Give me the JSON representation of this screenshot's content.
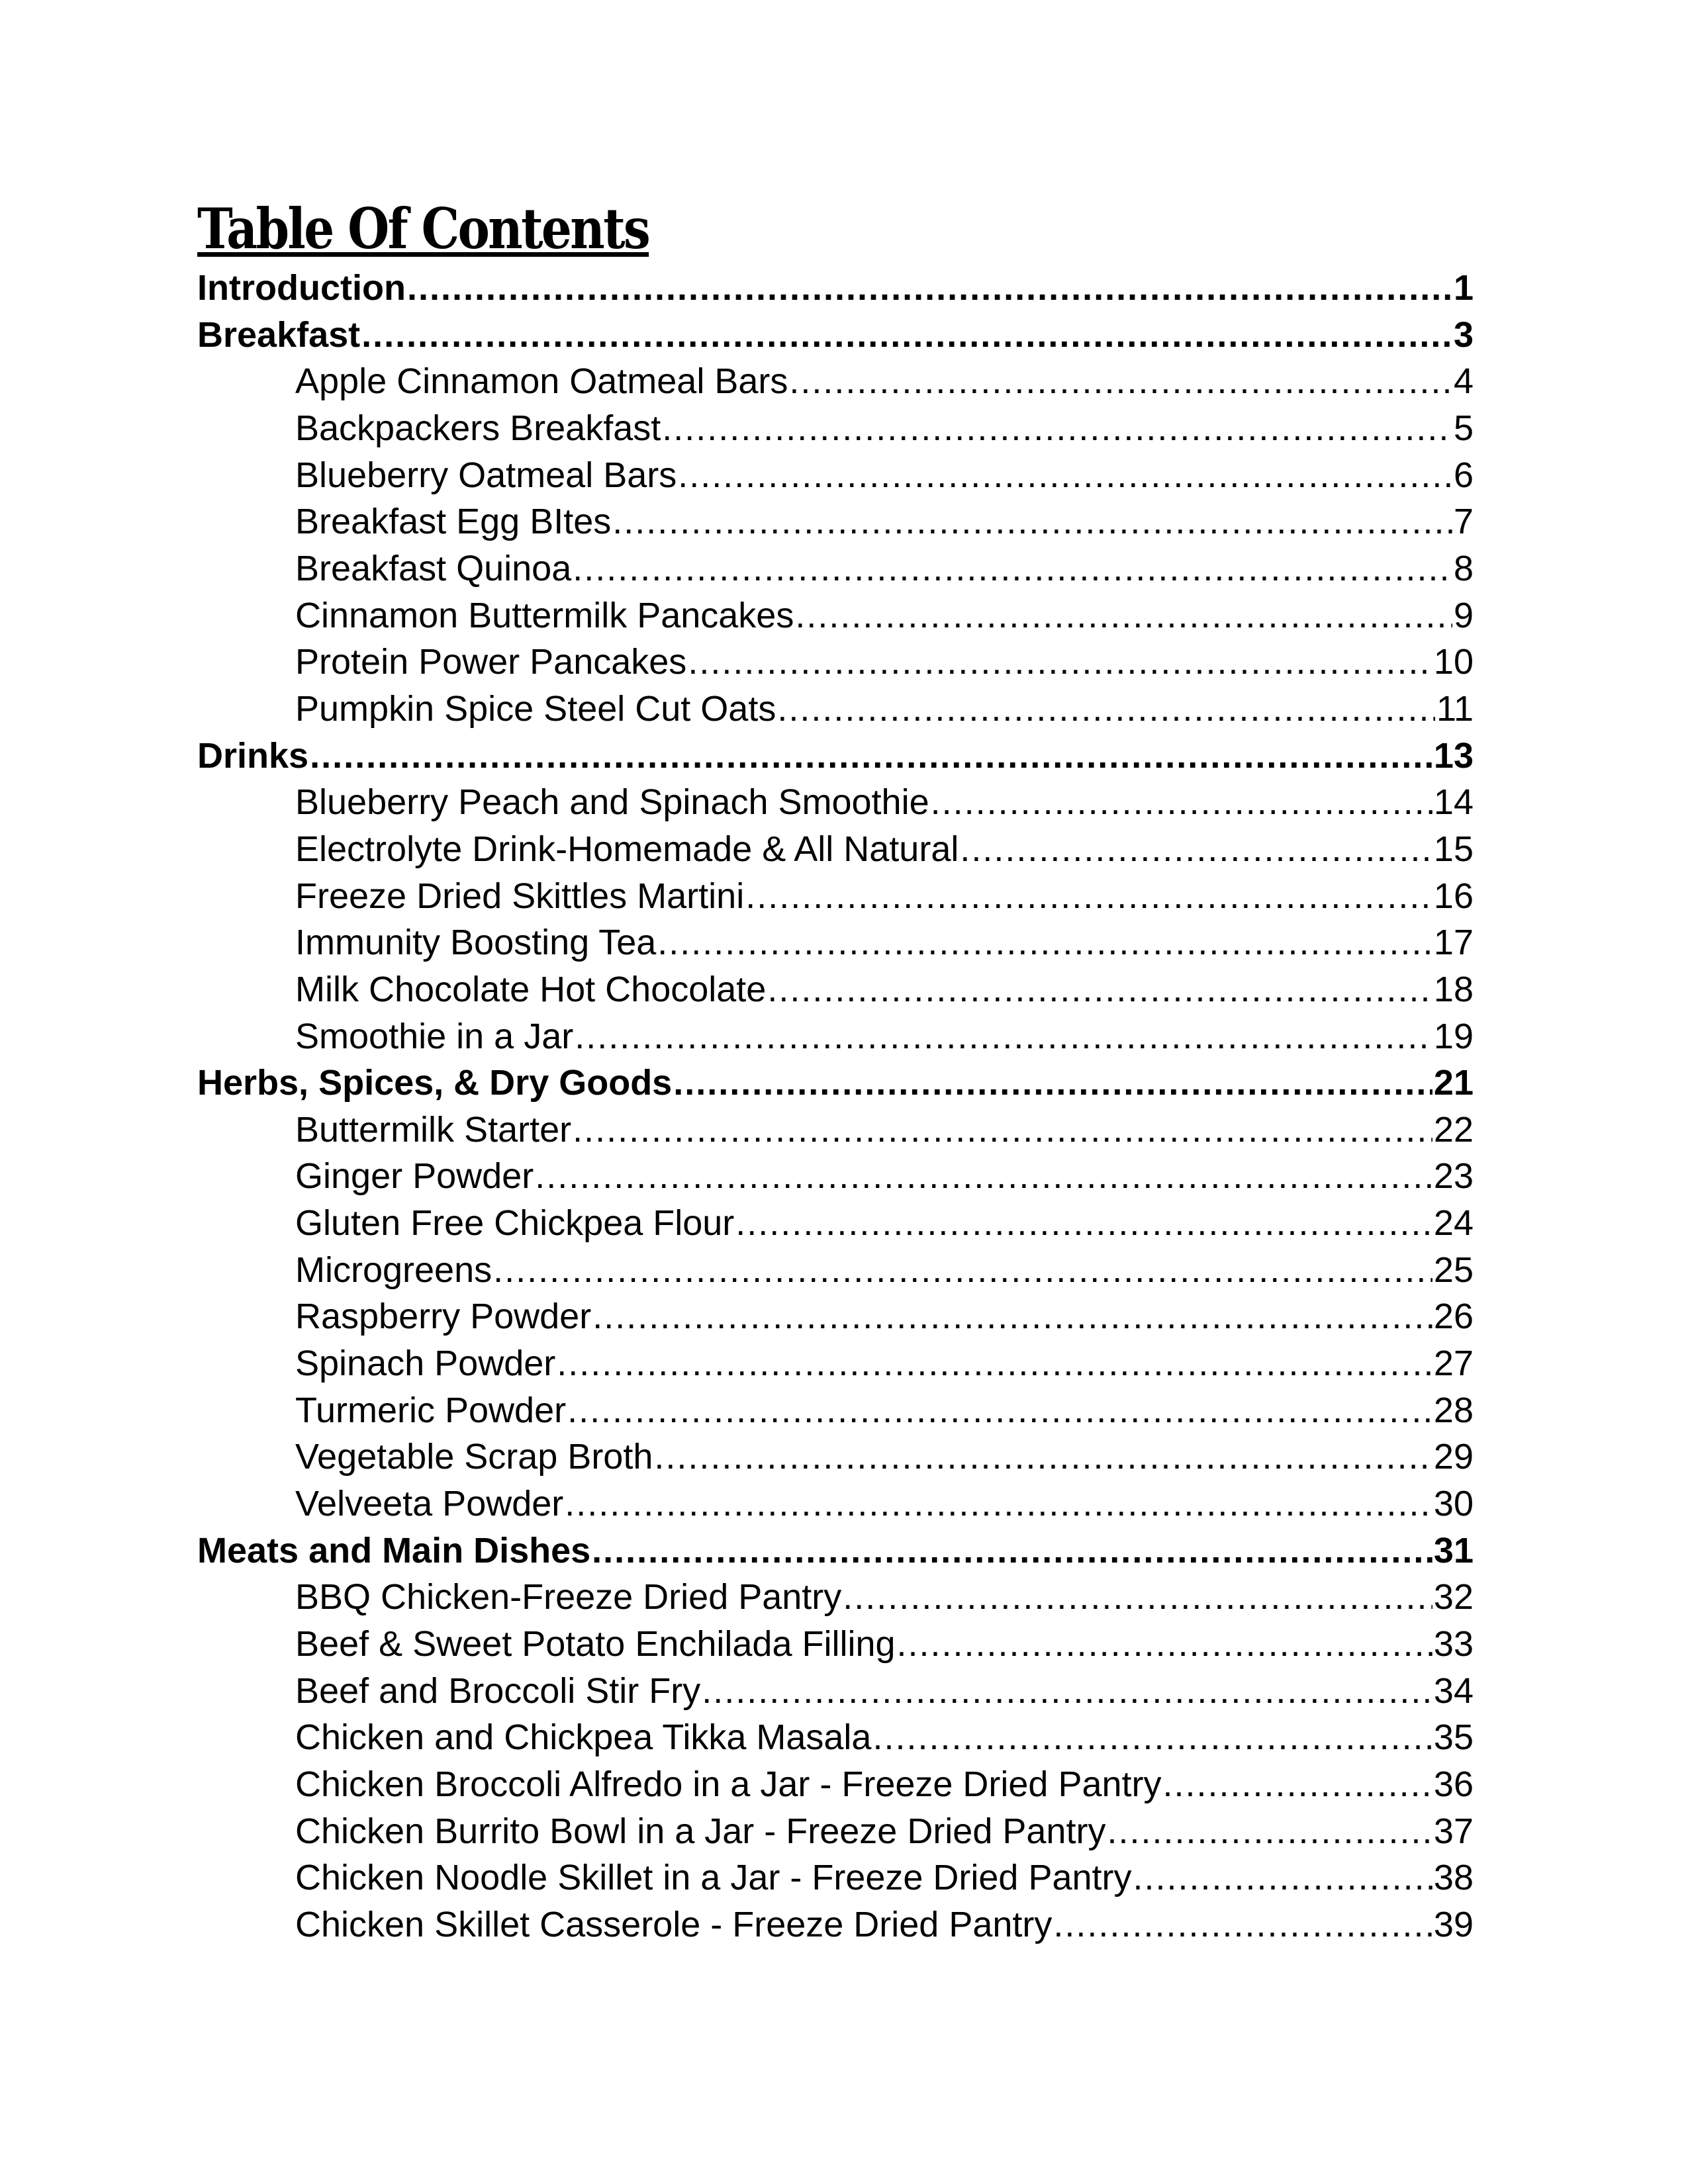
{
  "title": "Table Of Contents",
  "entries": [
    {
      "label": "Introduction",
      "page": "1",
      "level": 1
    },
    {
      "label": "Breakfast",
      "page": "3",
      "level": 1
    },
    {
      "label": "Apple Cinnamon Oatmeal Bars",
      "page": "4",
      "level": 2
    },
    {
      "label": "Backpackers Breakfast",
      "page": "5",
      "level": 2
    },
    {
      "label": "Blueberry Oatmeal Bars",
      "page": "6",
      "level": 2
    },
    {
      "label": "Breakfast Egg BItes",
      "page": "7",
      "level": 2
    },
    {
      "label": "Breakfast Quinoa",
      "page": "8",
      "level": 2
    },
    {
      "label": "Cinnamon Buttermilk Pancakes",
      "page": "9",
      "level": 2
    },
    {
      "label": "Protein Power Pancakes",
      "page": "10",
      "level": 2
    },
    {
      "label": "Pumpkin Spice Steel Cut Oats",
      "page": "11",
      "level": 2
    },
    {
      "label": "Drinks",
      "page": "13",
      "level": 1
    },
    {
      "label": "Blueberry Peach  and Spinach Smoothie",
      "page": "14",
      "level": 2
    },
    {
      "label": "Electrolyte Drink-Homemade & All Natural",
      "page": "15",
      "level": 2
    },
    {
      "label": "Freeze Dried Skittles Martini",
      "page": "16",
      "level": 2
    },
    {
      "label": "Immunity Boosting Tea",
      "page": "17",
      "level": 2
    },
    {
      "label": "Milk Chocolate Hot Chocolate",
      "page": "18",
      "level": 2
    },
    {
      "label": "Smoothie in a Jar",
      "page": "19",
      "level": 2
    },
    {
      "label": "Herbs, Spices, & Dry Goods",
      "page": "21",
      "level": 1
    },
    {
      "label": "Buttermilk Starter",
      "page": "22",
      "level": 2
    },
    {
      "label": "Ginger Powder",
      "page": "23",
      "level": 2
    },
    {
      "label": "Gluten Free Chickpea Flour",
      "page": "24",
      "level": 2
    },
    {
      "label": "Microgreens",
      "page": "25",
      "level": 2
    },
    {
      "label": "Raspberry Powder",
      "page": "26",
      "level": 2
    },
    {
      "label": "Spinach Powder",
      "page": "27",
      "level": 2
    },
    {
      "label": "Turmeric Powder",
      "page": "28",
      "level": 2
    },
    {
      "label": "Vegetable Scrap Broth",
      "page": "29",
      "level": 2
    },
    {
      "label": "Velveeta Powder",
      "page": "30",
      "level": 2
    },
    {
      "label": "Meats and Main Dishes",
      "page": "31",
      "level": 1
    },
    {
      "label": "BBQ Chicken-Freeze Dried Pantry",
      "page": "32",
      "level": 2
    },
    {
      "label": "Beef & Sweet Potato Enchilada Filling",
      "page": "33",
      "level": 2
    },
    {
      "label": "Beef and Broccoli Stir Fry",
      "page": "34",
      "level": 2
    },
    {
      "label": "Chicken and Chickpea Tikka Masala",
      "page": "35",
      "level": 2
    },
    {
      "label": "Chicken Broccoli Alfredo in a Jar - Freeze Dried Pantry",
      "page": "36",
      "level": 2
    },
    {
      "label": "Chicken Burrito Bowl in a Jar -  Freeze Dried Pantry",
      "page": "37",
      "level": 2
    },
    {
      "label": "Chicken Noodle Skillet in a Jar - Freeze Dried Pantry",
      "page": "38",
      "level": 2
    },
    {
      "label": "Chicken Skillet Casserole - Freeze Dried Pantry",
      "page": "39",
      "level": 2
    }
  ]
}
